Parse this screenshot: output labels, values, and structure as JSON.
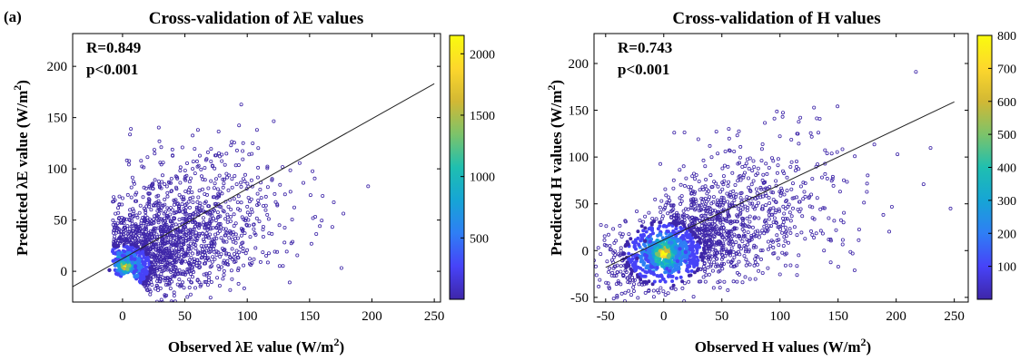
{
  "panel_label": "(a)",
  "colormap": [
    "#3e26a8",
    "#4743f8",
    "#2f7ef5",
    "#16a5d5",
    "#1fbfb0",
    "#7cc36a",
    "#d2b834",
    "#fdd72c",
    "#f9fb0e"
  ],
  "chart_data": [
    {
      "type": "scatter",
      "title": "Cross-validation of λE values",
      "xlabel": "Observed λE value (W/m²)",
      "ylabel": "Predicted λE value (W/m²)",
      "xlim": [
        -40,
        255
      ],
      "ylim": [
        -30,
        232
      ],
      "xticks": [
        0,
        50,
        100,
        150,
        200,
        250
      ],
      "yticks": [
        0,
        50,
        100,
        150,
        200
      ],
      "stats": {
        "r": "R=0.849",
        "p": "p<0.001"
      },
      "fit_line": {
        "x": [
          -40,
          250
        ],
        "y": [
          -15,
          183
        ]
      },
      "density": {
        "center": [
          2,
          5
        ],
        "major_direction": [
          1.0,
          0.72
        ],
        "core_extent": [
          [
            -6,
            185
          ],
          [
            -10,
            150
          ]
        ]
      },
      "colorbar": {
        "min": 0,
        "max": 2150,
        "ticks": [
          500,
          1000,
          1500,
          2000
        ]
      },
      "grid": false
    },
    {
      "type": "scatter",
      "title": "Cross-validation of H values",
      "xlabel": "Observed H values (W/m²)",
      "ylabel": "Predicted H values (W/m²)",
      "xlim": [
        -60,
        262
      ],
      "ylim": [
        -55,
        232
      ],
      "xticks": [
        -50,
        0,
        50,
        100,
        150,
        200,
        250
      ],
      "yticks": [
        -50,
        0,
        50,
        100,
        150,
        200
      ],
      "stats": {
        "r": "R=0.743",
        "p": "p<0.001"
      },
      "fit_line": {
        "x": [
          -50,
          250
        ],
        "y": [
          -18,
          159
        ]
      },
      "density": {
        "center": [
          0,
          -3
        ],
        "major_direction": [
          1.0,
          0.59
        ],
        "core_extent": [
          [
            -55,
            245
          ],
          [
            -45,
            150
          ]
        ]
      },
      "colorbar": {
        "min": 0,
        "max": 800,
        "ticks": [
          100,
          200,
          300,
          400,
          500,
          600,
          700,
          800
        ]
      },
      "grid": false
    }
  ]
}
